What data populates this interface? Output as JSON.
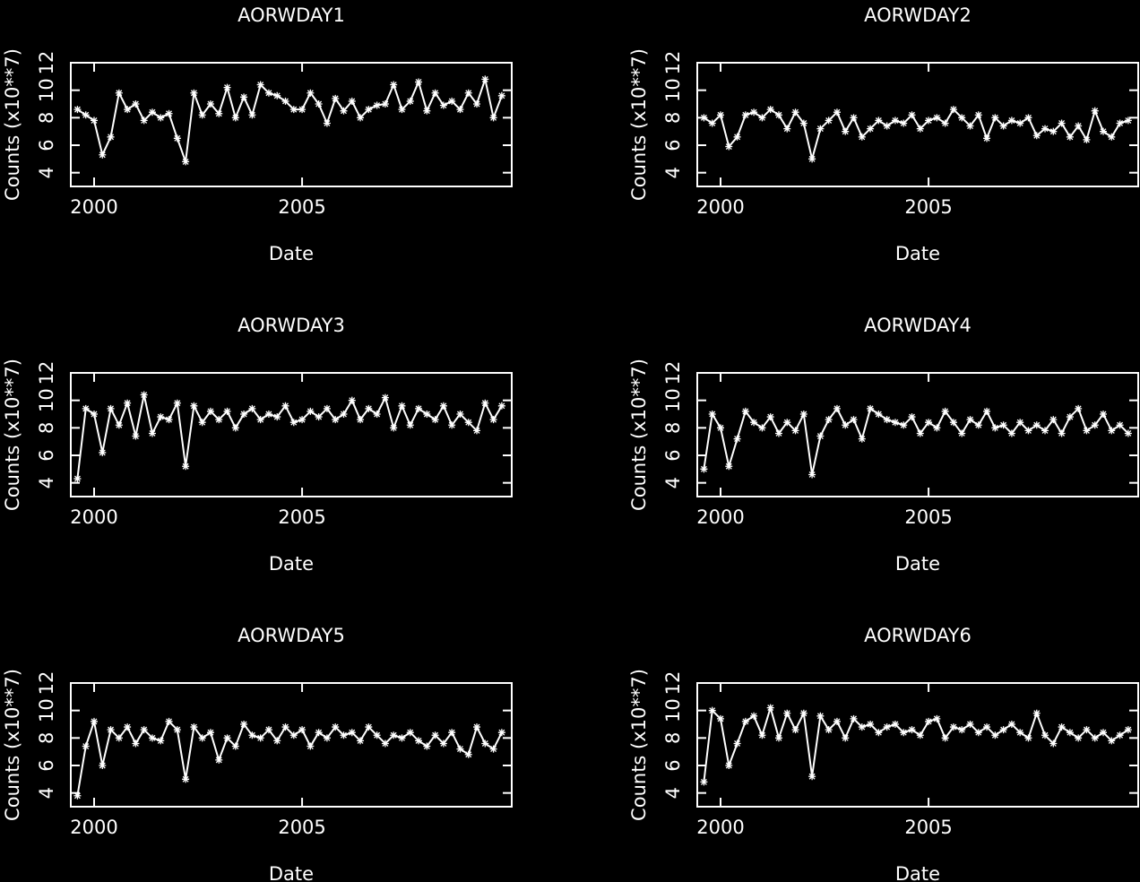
{
  "chart_data": [
    {
      "type": "line",
      "title": "AORWDAY1",
      "xlabel": "Date",
      "ylabel": "Counts (x10**7)",
      "color": "#ffffff",
      "marker": "asterisk",
      "xlim": [
        1999.44,
        2010.04
      ],
      "ylim": [
        3,
        12
      ],
      "xticks": [
        2000,
        2005
      ],
      "yticks": [
        4,
        6,
        8,
        10,
        12
      ],
      "x": [
        1999.6,
        1999.8,
        2000,
        2000.2,
        2000.4,
        2000.6,
        2000.8,
        2001,
        2001.2,
        2001.4,
        2001.6,
        2001.8,
        2002,
        2002.2,
        2002.4,
        2002.6,
        2002.8,
        2003,
        2003.2,
        2003.4,
        2003.6,
        2003.8,
        2004,
        2004.2,
        2004.4,
        2004.6,
        2004.8,
        2005,
        2005.2,
        2005.4,
        2005.6,
        2005.8,
        2006,
        2006.2,
        2006.4,
        2006.6,
        2006.8,
        2007,
        2007.2,
        2007.4,
        2007.6,
        2007.8,
        2008,
        2008.2,
        2008.4,
        2008.6,
        2008.8,
        2009,
        2009.2,
        2009.4,
        2009.6,
        2009.8
      ],
      "values": [
        8.6,
        8.2,
        7.8,
        5.3,
        6.6,
        9.8,
        8.6,
        9.0,
        7.8,
        8.4,
        8.0,
        8.3,
        6.5,
        4.8,
        9.8,
        8.2,
        9.0,
        8.3,
        10.2,
        8.0,
        9.5,
        8.2,
        10.4,
        9.8,
        9.6,
        9.2,
        8.6,
        8.6,
        9.8,
        9.0,
        7.6,
        9.4,
        8.5,
        9.2,
        8.0,
        8.6,
        8.9,
        9.0,
        10.4,
        8.6,
        9.2,
        10.6,
        8.5,
        9.8,
        8.9,
        9.2,
        8.6,
        9.8,
        9.0,
        10.8,
        8.0,
        9.6
      ]
    },
    {
      "type": "line",
      "title": "AORWDAY2",
      "xlabel": "Date",
      "ylabel": "Counts (x10**7)",
      "color": "#ffffff",
      "marker": "asterisk",
      "xlim": [
        1999.44,
        2010.04
      ],
      "ylim": [
        3,
        12
      ],
      "xticks": [
        2000,
        2005
      ],
      "yticks": [
        4,
        6,
        8,
        10,
        12
      ],
      "x": [
        1999.6,
        1999.8,
        2000,
        2000.2,
        2000.4,
        2000.6,
        2000.8,
        2001,
        2001.2,
        2001.4,
        2001.6,
        2001.8,
        2002,
        2002.2,
        2002.4,
        2002.6,
        2002.8,
        2003,
        2003.2,
        2003.4,
        2003.6,
        2003.8,
        2004,
        2004.2,
        2004.4,
        2004.6,
        2004.8,
        2005,
        2005.2,
        2005.4,
        2005.6,
        2005.8,
        2006,
        2006.2,
        2006.4,
        2006.6,
        2006.8,
        2007,
        2007.2,
        2007.4,
        2007.6,
        2007.8,
        2008,
        2008.2,
        2008.4,
        2008.6,
        2008.8,
        2009,
        2009.2,
        2009.4,
        2009.6,
        2009.8
      ],
      "values": [
        8.0,
        7.6,
        8.2,
        5.9,
        6.6,
        8.2,
        8.4,
        8.0,
        8.6,
        8.2,
        7.2,
        8.4,
        7.6,
        5.0,
        7.2,
        7.8,
        8.4,
        7.0,
        8.0,
        6.6,
        7.2,
        7.8,
        7.4,
        7.8,
        7.6,
        8.2,
        7.2,
        7.8,
        8.0,
        7.6,
        8.6,
        8.0,
        7.4,
        8.2,
        6.5,
        8.0,
        7.4,
        7.8,
        7.6,
        8.0,
        6.7,
        7.2,
        7.0,
        7.6,
        6.6,
        7.4,
        6.4,
        8.5,
        7.0,
        6.6,
        7.6,
        7.8
      ]
    },
    {
      "type": "line",
      "title": "AORWDAY3",
      "xlabel": "Date",
      "ylabel": "Counts (x10**7)",
      "color": "#ffffff",
      "marker": "asterisk",
      "xlim": [
        1999.44,
        2010.04
      ],
      "ylim": [
        3,
        12
      ],
      "xticks": [
        2000,
        2005
      ],
      "yticks": [
        4,
        6,
        8,
        10,
        12
      ],
      "x": [
        1999.6,
        1999.8,
        2000,
        2000.2,
        2000.4,
        2000.6,
        2000.8,
        2001,
        2001.2,
        2001.4,
        2001.6,
        2001.8,
        2002,
        2002.2,
        2002.4,
        2002.6,
        2002.8,
        2003,
        2003.2,
        2003.4,
        2003.6,
        2003.8,
        2004,
        2004.2,
        2004.4,
        2004.6,
        2004.8,
        2005,
        2005.2,
        2005.4,
        2005.6,
        2005.8,
        2006,
        2006.2,
        2006.4,
        2006.6,
        2006.8,
        2007,
        2007.2,
        2007.4,
        2007.6,
        2007.8,
        2008,
        2008.2,
        2008.4,
        2008.6,
        2008.8,
        2009,
        2009.2,
        2009.4,
        2009.6,
        2009.8
      ],
      "values": [
        4.3,
        9.4,
        9.0,
        6.2,
        9.4,
        8.2,
        9.8,
        7.4,
        10.4,
        7.6,
        8.8,
        8.6,
        9.8,
        5.2,
        9.6,
        8.4,
        9.2,
        8.6,
        9.2,
        8.0,
        9.0,
        9.4,
        8.6,
        9.0,
        8.8,
        9.6,
        8.4,
        8.6,
        9.2,
        8.8,
        9.4,
        8.6,
        9.0,
        10.0,
        8.6,
        9.4,
        9.0,
        10.2,
        8.0,
        9.6,
        8.2,
        9.4,
        9.0,
        8.6,
        9.6,
        8.2,
        9.0,
        8.4,
        7.8,
        9.8,
        8.6,
        9.6
      ]
    },
    {
      "type": "line",
      "title": "AORWDAY4",
      "xlabel": "Date",
      "ylabel": "Counts (x10**7)",
      "color": "#ffffff",
      "marker": "asterisk",
      "xlim": [
        1999.44,
        2010.04
      ],
      "ylim": [
        3,
        12
      ],
      "xticks": [
        2000,
        2005
      ],
      "yticks": [
        4,
        6,
        8,
        10,
        12
      ],
      "x": [
        1999.6,
        1999.8,
        2000,
        2000.2,
        2000.4,
        2000.6,
        2000.8,
        2001,
        2001.2,
        2001.4,
        2001.6,
        2001.8,
        2002,
        2002.2,
        2002.4,
        2002.6,
        2002.8,
        2003,
        2003.2,
        2003.4,
        2003.6,
        2003.8,
        2004,
        2004.2,
        2004.4,
        2004.6,
        2004.8,
        2005,
        2005.2,
        2005.4,
        2005.6,
        2005.8,
        2006,
        2006.2,
        2006.4,
        2006.6,
        2006.8,
        2007,
        2007.2,
        2007.4,
        2007.6,
        2007.8,
        2008,
        2008.2,
        2008.4,
        2008.6,
        2008.8,
        2009,
        2009.2,
        2009.4,
        2009.6,
        2009.8
      ],
      "values": [
        5.0,
        9.0,
        8.0,
        5.2,
        7.2,
        9.2,
        8.4,
        8.0,
        8.8,
        7.6,
        8.4,
        7.8,
        9.0,
        4.6,
        7.4,
        8.6,
        9.4,
        8.2,
        8.6,
        7.2,
        9.4,
        9.0,
        8.6,
        8.4,
        8.2,
        8.8,
        7.6,
        8.4,
        8.0,
        9.2,
        8.4,
        7.6,
        8.6,
        8.2,
        9.2,
        8.0,
        8.2,
        7.6,
        8.4,
        7.8,
        8.2,
        7.8,
        8.6,
        7.6,
        8.8,
        9.4,
        7.8,
        8.2,
        9.0,
        7.8,
        8.2,
        7.6
      ]
    },
    {
      "type": "line",
      "title": "AORWDAY5",
      "xlabel": "Date",
      "ylabel": "Counts (x10**7)",
      "color": "#ffffff",
      "marker": "asterisk",
      "xlim": [
        1999.44,
        2010.04
      ],
      "ylim": [
        3,
        12
      ],
      "xticks": [
        2000,
        2005
      ],
      "yticks": [
        4,
        6,
        8,
        10,
        12
      ],
      "x": [
        1999.6,
        1999.8,
        2000,
        2000.2,
        2000.4,
        2000.6,
        2000.8,
        2001,
        2001.2,
        2001.4,
        2001.6,
        2001.8,
        2002,
        2002.2,
        2002.4,
        2002.6,
        2002.8,
        2003,
        2003.2,
        2003.4,
        2003.6,
        2003.8,
        2004,
        2004.2,
        2004.4,
        2004.6,
        2004.8,
        2005,
        2005.2,
        2005.4,
        2005.6,
        2005.8,
        2006,
        2006.2,
        2006.4,
        2006.6,
        2006.8,
        2007,
        2007.2,
        2007.4,
        2007.6,
        2007.8,
        2008,
        2008.2,
        2008.4,
        2008.6,
        2008.8,
        2009,
        2009.2,
        2009.4,
        2009.6,
        2009.8
      ],
      "values": [
        3.8,
        7.4,
        9.2,
        6.0,
        8.6,
        8.0,
        8.8,
        7.6,
        8.6,
        8.0,
        7.8,
        9.2,
        8.6,
        5.0,
        8.8,
        8.0,
        8.4,
        6.4,
        8.0,
        7.4,
        9.0,
        8.2,
        8.0,
        8.6,
        7.8,
        8.8,
        8.2,
        8.6,
        7.4,
        8.4,
        8.0,
        8.8,
        8.2,
        8.4,
        7.8,
        8.8,
        8.2,
        7.6,
        8.2,
        8.0,
        8.4,
        7.8,
        7.4,
        8.2,
        7.6,
        8.4,
        7.2,
        6.8,
        8.8,
        7.6,
        7.2,
        8.4
      ]
    },
    {
      "type": "line",
      "title": "AORWDAY6",
      "xlabel": "Date",
      "ylabel": "Counts (x10**7)",
      "color": "#ffffff",
      "marker": "asterisk",
      "xlim": [
        1999.44,
        2010.04
      ],
      "ylim": [
        3,
        12
      ],
      "xticks": [
        2000,
        2005
      ],
      "yticks": [
        4,
        6,
        8,
        10,
        12
      ],
      "x": [
        1999.6,
        1999.8,
        2000,
        2000.2,
        2000.4,
        2000.6,
        2000.8,
        2001,
        2001.2,
        2001.4,
        2001.6,
        2001.8,
        2002,
        2002.2,
        2002.4,
        2002.6,
        2002.8,
        2003,
        2003.2,
        2003.4,
        2003.6,
        2003.8,
        2004,
        2004.2,
        2004.4,
        2004.6,
        2004.8,
        2005,
        2005.2,
        2005.4,
        2005.6,
        2005.8,
        2006,
        2006.2,
        2006.4,
        2006.6,
        2006.8,
        2007,
        2007.2,
        2007.4,
        2007.6,
        2007.8,
        2008,
        2008.2,
        2008.4,
        2008.6,
        2008.8,
        2009,
        2009.2,
        2009.4,
        2009.6,
        2009.8
      ],
      "values": [
        4.8,
        10.0,
        9.4,
        6.0,
        7.6,
        9.2,
        9.6,
        8.2,
        10.2,
        8.0,
        9.8,
        8.6,
        9.8,
        5.2,
        9.6,
        8.6,
        9.2,
        8.0,
        9.4,
        8.8,
        9.0,
        8.4,
        8.8,
        9.0,
        8.4,
        8.6,
        8.2,
        9.2,
        9.4,
        8.0,
        8.8,
        8.6,
        9.0,
        8.4,
        8.8,
        8.2,
        8.6,
        9.0,
        8.4,
        8.0,
        9.8,
        8.2,
        7.6,
        8.8,
        8.4,
        8.0,
        8.6,
        8.0,
        8.4,
        7.8,
        8.2,
        8.6
      ]
    }
  ]
}
